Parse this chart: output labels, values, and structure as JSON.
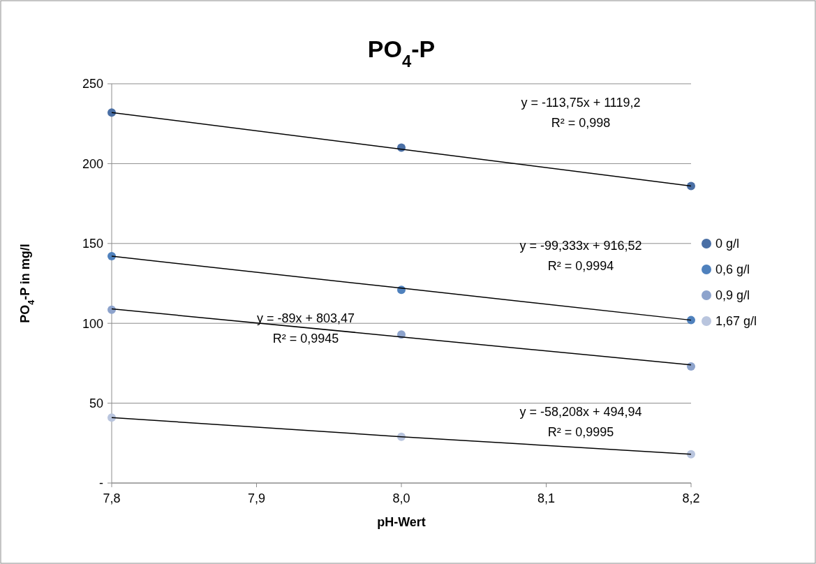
{
  "chart_data": {
    "type": "scatter",
    "title": "PO$_{4}$-P",
    "xlabel": "pH-Wert",
    "ylabel": "PO$_{4}$-P in mg/l",
    "x": [
      7.8,
      8.0,
      8.2
    ],
    "series": [
      {
        "name": "0 g/l",
        "color": "#4a6fa5",
        "values": [
          232,
          210,
          186
        ]
      },
      {
        "name": "0,6 g/l",
        "color": "#4f81bd",
        "values": [
          142,
          121,
          102
        ]
      },
      {
        "name": "0,9 g/l",
        "color": "#8da3cc",
        "values": [
          108.5,
          93,
          73
        ]
      },
      {
        "name": "1,67 g/l",
        "color": "#b9c5de",
        "values": [
          41,
          29,
          18
        ]
      },
      {
        "type": "line",
        "color": "#000000",
        "marker": "none",
        "values": [
          232,
          209,
          186
        ]
      },
      {
        "type": "line",
        "color": "#000000",
        "marker": "none",
        "values": [
          142,
          122,
          102
        ]
      },
      {
        "type": "line",
        "color": "#000000",
        "marker": "none",
        "values": [
          109,
          91.5,
          74
        ]
      },
      {
        "type": "line",
        "color": "#000000",
        "marker": "none",
        "values": [
          41,
          29,
          18
        ]
      }
    ],
    "xlim": [
      7.8,
      8.2
    ],
    "xticks": [
      {
        "value": 7.8,
        "label": "7,8"
      },
      {
        "value": 7.9,
        "label": "7,9"
      },
      {
        "value": 8.0,
        "label": "8,0"
      },
      {
        "value": 8.1,
        "label": "8,1"
      },
      {
        "value": 8.2,
        "label": "8,2"
      }
    ],
    "ylim": [
      0,
      250
    ],
    "yticks": [
      {
        "value": 0,
        "label": "-"
      },
      50,
      100,
      150,
      200,
      250
    ],
    "grid": "y",
    "legend": "right",
    "marker": "circle",
    "annotations": [
      "y = -113,75x + 1119,2\nR² = 0,998",
      "y = -99,333x + 916,52\nR² = 0,9994",
      "y = -89x + 803,47\nR² = 0,9945",
      "y = -58,208x + 494,94\nR² = 0,9995"
    ]
  }
}
